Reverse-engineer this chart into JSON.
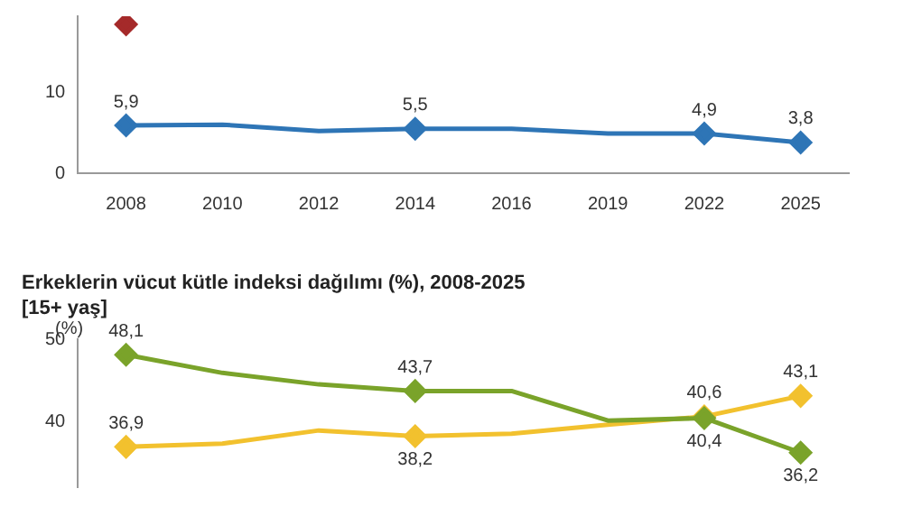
{
  "chart_data": [
    {
      "type": "line",
      "categories": [
        "2008",
        "2010",
        "2012",
        "2014",
        "2016",
        "2019",
        "2022",
        "2025"
      ],
      "ylim": [
        0,
        19.4
      ],
      "yticks": [
        0,
        10
      ],
      "grid": false,
      "legend": false,
      "marker": "diamond",
      "line_style": "solid",
      "series": [
        {
          "color": "#a52a2a",
          "values": [
            18.4,
            null,
            null,
            null,
            null,
            null,
            null,
            null
          ],
          "value_labels": [
            null,
            null,
            null,
            null,
            null,
            null,
            null,
            null
          ]
        },
        {
          "color": "#2e75b6",
          "values": [
            5.9,
            6.0,
            5.2,
            5.5,
            5.5,
            4.9,
            4.9,
            3.8
          ],
          "value_labels": [
            "5,9",
            null,
            null,
            "5,5",
            null,
            null,
            "4,9",
            "3,8"
          ]
        }
      ]
    },
    {
      "type": "line",
      "title": "Erkeklerin vücut kütle indeksi dağılımı (%), 2008-2025",
      "subtitle": "[15+ yaş]",
      "ylabel": "(%)",
      "categories": [
        null,
        null,
        null,
        null,
        null,
        null,
        null,
        null
      ],
      "ylim": [
        32,
        50
      ],
      "yticks": [
        40,
        50
      ],
      "tick_labels": "y",
      "grid": false,
      "legend": false,
      "marker": "diamond",
      "line_style": "solid",
      "series": [
        {
          "color": "#7aa32a",
          "values": [
            48.1,
            45.9,
            44.5,
            43.7,
            43.7,
            40.1,
            40.4,
            36.2
          ],
          "value_labels": [
            "48,1",
            null,
            null,
            "43,7",
            null,
            null,
            "40,4",
            "36,2"
          ]
        },
        {
          "color": "#f2c12e",
          "values": [
            36.9,
            37.3,
            38.9,
            38.2,
            38.5,
            39.6,
            40.6,
            43.1
          ],
          "value_labels": [
            "36,9",
            null,
            null,
            "38,2",
            null,
            null,
            "40,6",
            "43,1"
          ]
        }
      ]
    }
  ]
}
